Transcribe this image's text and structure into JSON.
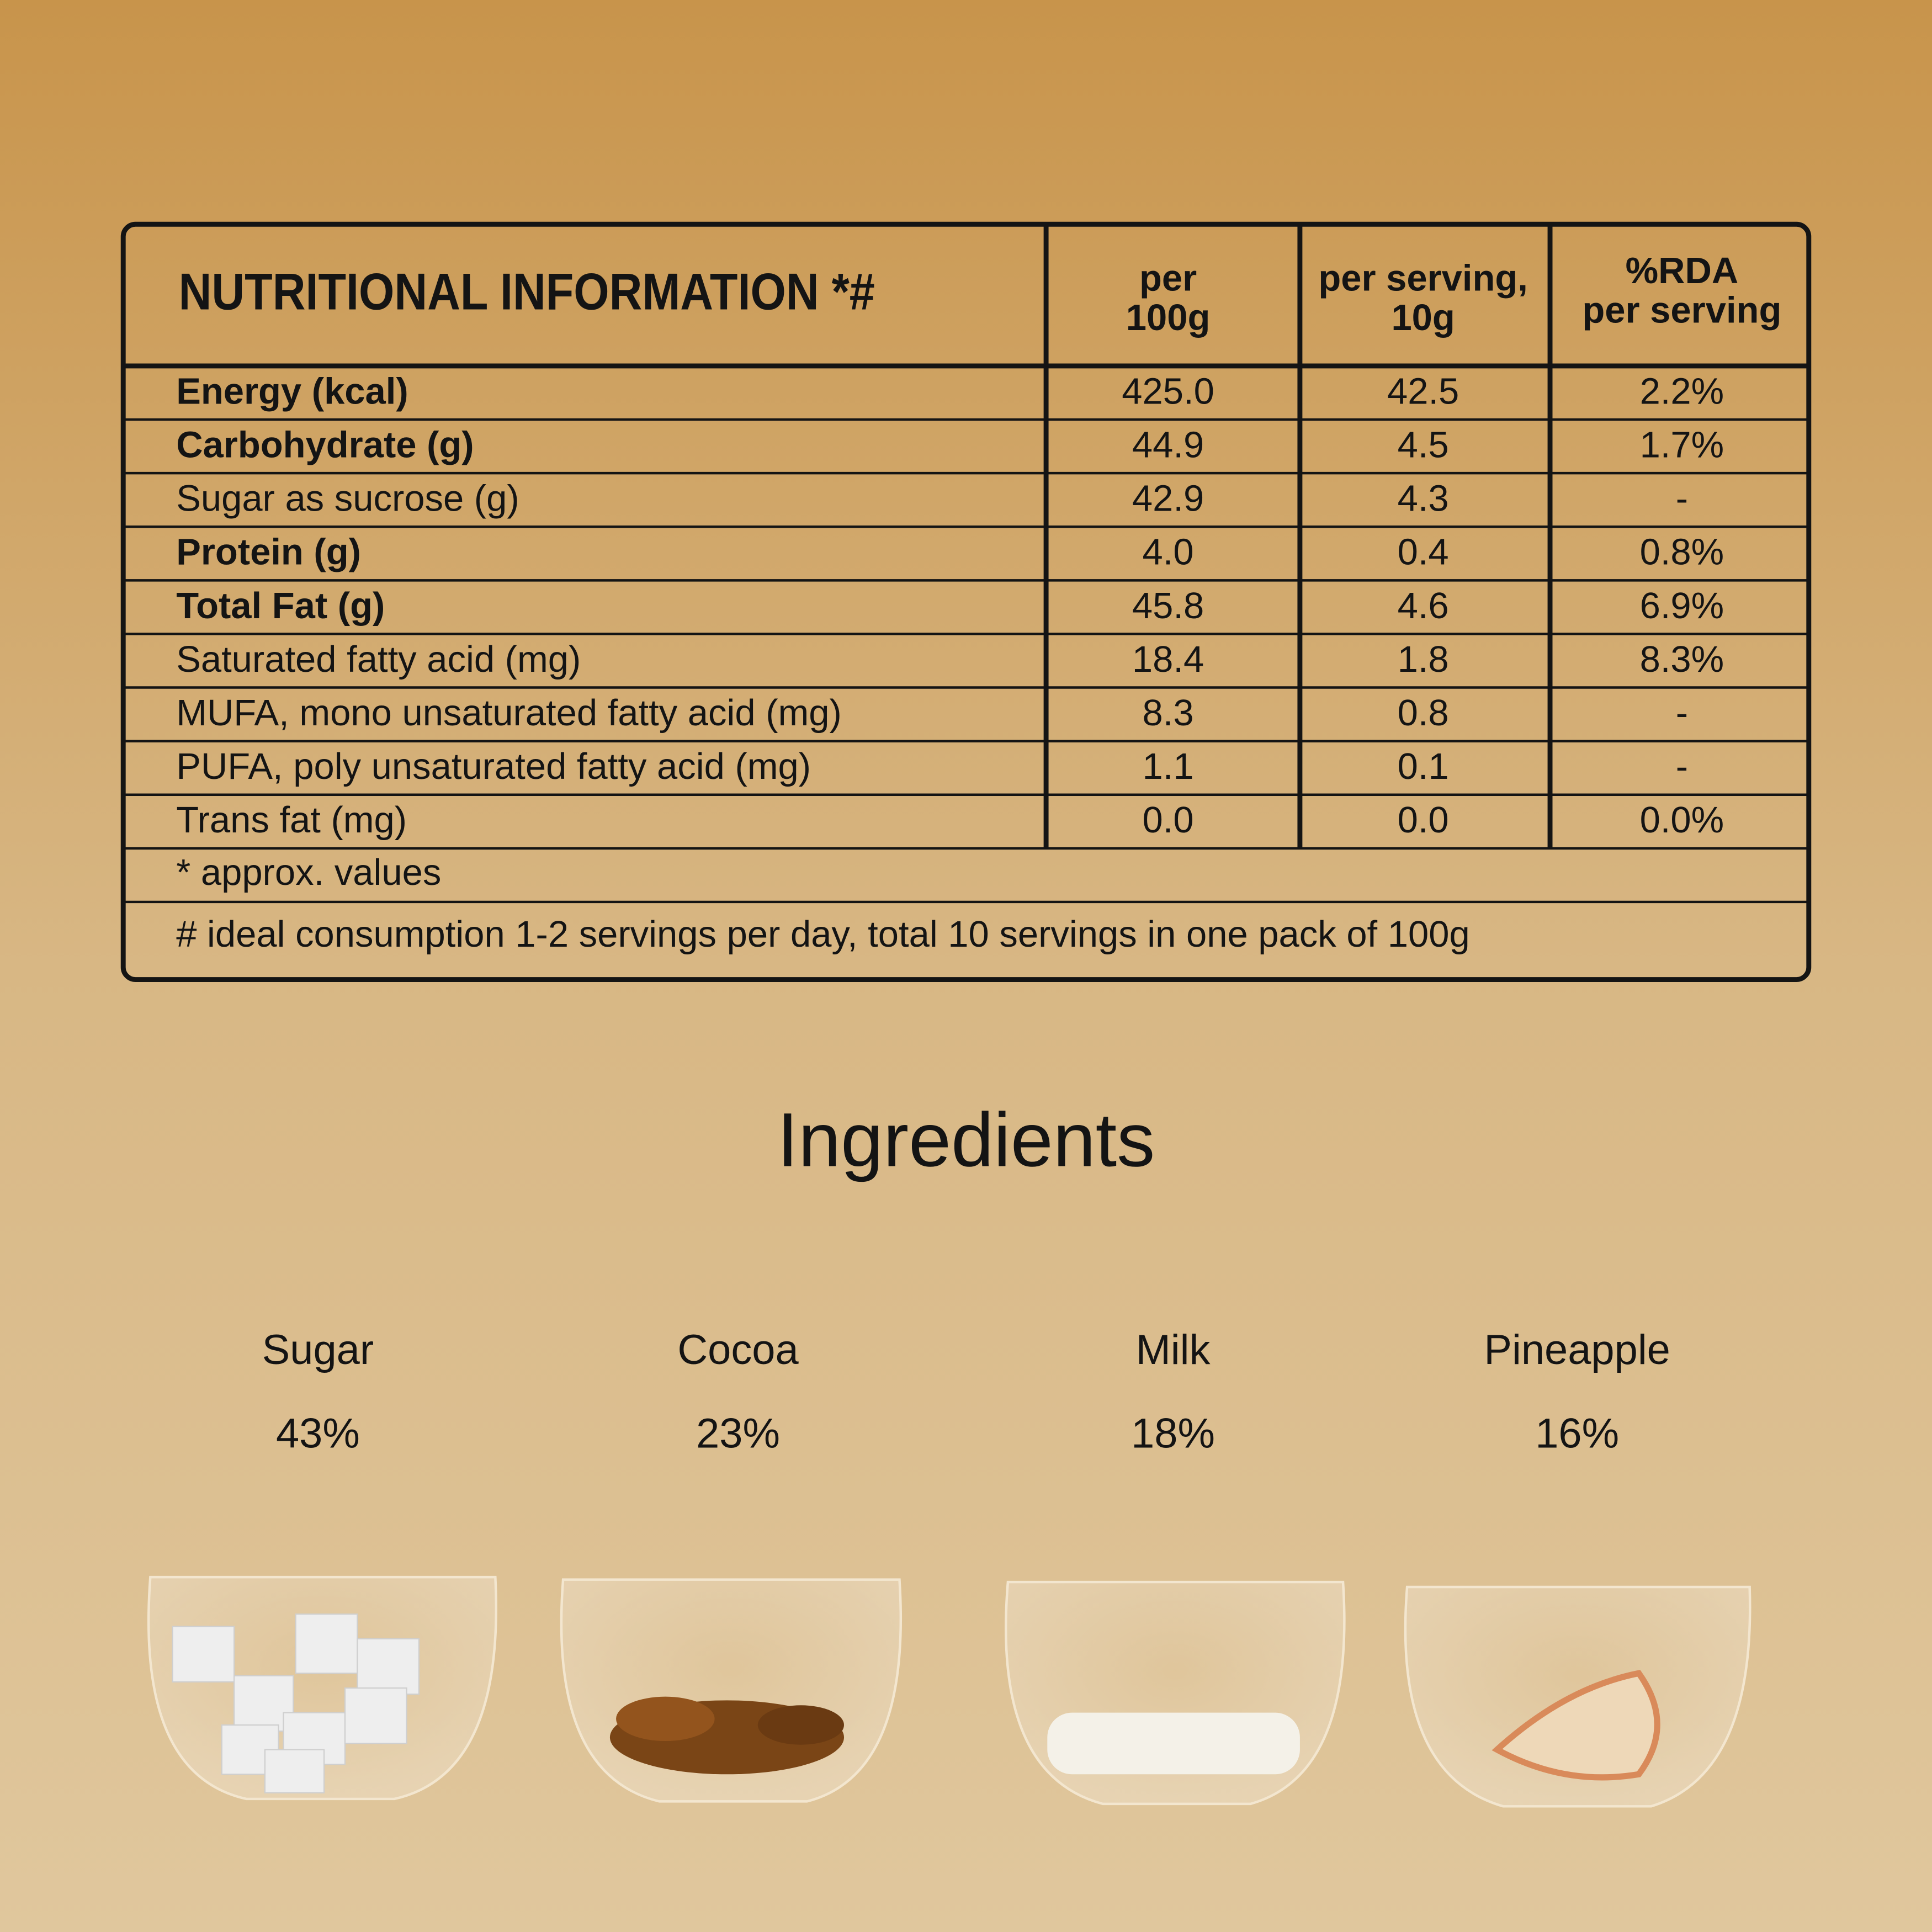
{
  "table": {
    "header": {
      "title": "NUTRITIONAL INFORMATION *#",
      "columns": [
        [
          "per",
          "100g"
        ],
        [
          "per serving,",
          "10g"
        ],
        [
          "%RDA",
          "per serving"
        ]
      ]
    },
    "rows": [
      {
        "label": "Energy (kcal)",
        "bold": true,
        "cells": [
          "425.0",
          "42.5",
          "2.2%"
        ]
      },
      {
        "label": "Carbohydrate (g)",
        "bold": true,
        "cells": [
          "44.9",
          "4.5",
          "1.7%"
        ]
      },
      {
        "label": "Sugar as sucrose (g)",
        "bold": false,
        "cells": [
          "42.9",
          "4.3",
          "-"
        ]
      },
      {
        "label": "Protein (g)",
        "bold": true,
        "cells": [
          "4.0",
          "0.4",
          "0.8%"
        ]
      },
      {
        "label": "Total Fat (g)",
        "bold": true,
        "cells": [
          "45.8",
          "4.6",
          "6.9%"
        ]
      },
      {
        "label": "Saturated fatty acid (mg)",
        "bold": false,
        "cells": [
          "18.4",
          "1.8",
          "8.3%"
        ]
      },
      {
        "label": "MUFA, mono unsaturated fatty acid (mg)",
        "bold": false,
        "cells": [
          "8.3",
          "0.8",
          "-"
        ]
      },
      {
        "label": "PUFA, poly unsaturated fatty acid (mg)",
        "bold": false,
        "cells": [
          "1.1",
          "0.1",
          "-"
        ]
      },
      {
        "label": "Trans fat (mg)",
        "bold": false,
        "cells": [
          "0.0",
          "0.0",
          "0.0%"
        ]
      }
    ],
    "notes": [
      "* approx. values",
      "# ideal consumption 1-2 servings per day, total 10 servings in one pack of 100g"
    ]
  },
  "ingredients": {
    "title": "Ingredients",
    "items": [
      {
        "name": "Sugar",
        "share": "43%"
      },
      {
        "name": "Cocoa",
        "share": "23%"
      },
      {
        "name": "Milk",
        "share": "18%"
      },
      {
        "name": "Pineapple",
        "share": "16%"
      }
    ]
  }
}
